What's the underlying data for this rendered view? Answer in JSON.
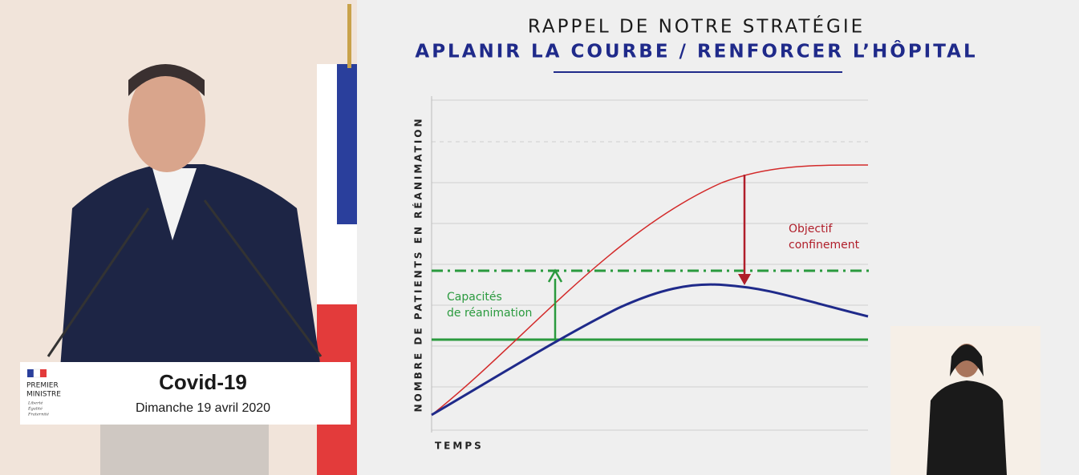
{
  "slide": {
    "title": "RAPPEL DE NOTRE STRATÉGIE",
    "subtitle": "APLANIR LA COURBE / RENFORCER L’HÔPITAL",
    "y_axis_label": "NOMBRE DE PATIENTS EN RÉANIMATION",
    "x_axis_label": "TEMPS",
    "annotations": [
      {
        "lines": [
          "Objectif",
          "confinement"
        ]
      },
      {
        "lines": [
          "Capacités",
          "de réanimation"
        ]
      }
    ]
  },
  "podium": {
    "logo": {
      "lines": [
        "PREMIER",
        "MINISTRE"
      ],
      "motto": [
        "Liberté",
        "Égalité",
        "Fraternité"
      ]
    },
    "title": "Covid-19",
    "date": "Dimanche 19 avril 2020"
  }
}
